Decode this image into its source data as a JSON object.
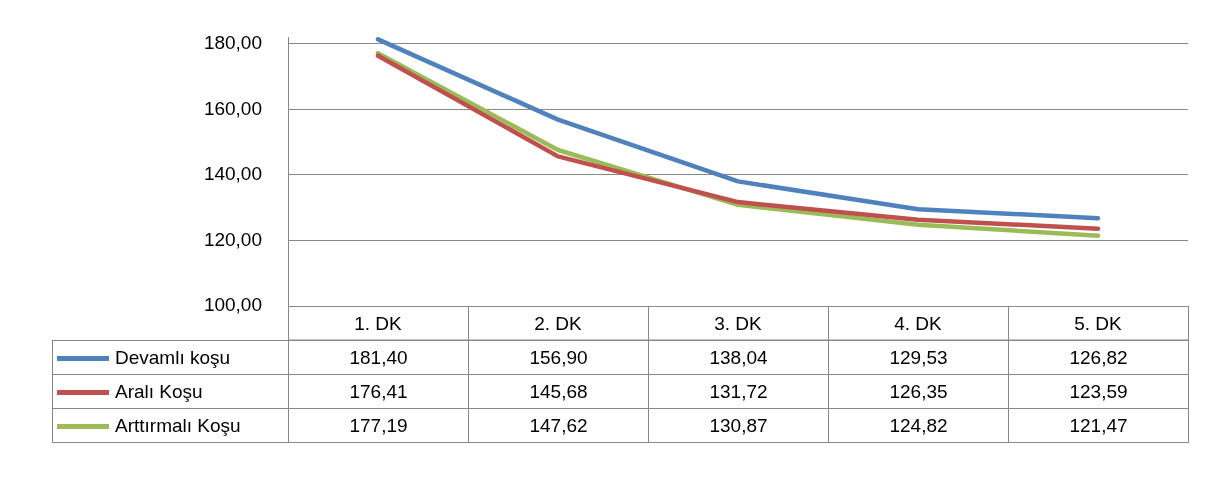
{
  "chart_data": {
    "type": "line",
    "categories": [
      "1. DK",
      "2. DK",
      "3. DK",
      "4. DK",
      "5. DK"
    ],
    "series": [
      {
        "name": "Devamlı koşu",
        "color": "#4f81bd",
        "values": [
          181.4,
          156.9,
          138.04,
          129.53,
          126.82
        ],
        "value_labels": [
          "181,40",
          "156,90",
          "138,04",
          "129,53",
          "126,82"
        ]
      },
      {
        "name": "Aralı Koşu",
        "color": "#c0504d",
        "values": [
          176.41,
          145.68,
          131.72,
          126.35,
          123.59
        ],
        "value_labels": [
          "176,41",
          "145,68",
          "131,72",
          "126,35",
          "123,59"
        ]
      },
      {
        "name": "Arttırmalı Koşu",
        "color": "#9bbb59",
        "values": [
          177.19,
          147.62,
          130.87,
          124.82,
          121.47
        ],
        "value_labels": [
          "177,19",
          "147,62",
          "130,87",
          "124,82",
          "121,47"
        ]
      }
    ],
    "ylim": [
      100,
      182
    ],
    "yticks": [
      {
        "value": 100,
        "label": "100,00"
      },
      {
        "value": 120,
        "label": "120,00"
      },
      {
        "value": 140,
        "label": "140,00"
      },
      {
        "value": 160,
        "label": "160,00"
      },
      {
        "value": 180,
        "label": "180,00"
      }
    ],
    "grid": "y",
    "legend": "bottom left",
    "marker": "none",
    "line_style": "solid"
  }
}
